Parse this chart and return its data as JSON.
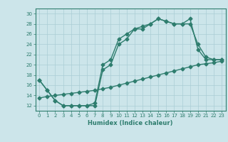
{
  "line1_x": [
    0,
    1,
    2,
    3,
    4,
    5,
    6,
    7,
    8,
    9,
    10,
    11,
    12,
    13,
    14,
    15,
    16,
    17,
    18,
    19,
    20,
    21,
    22,
    23
  ],
  "line1_y": [
    17,
    15,
    13,
    12,
    12,
    12,
    12,
    12,
    19,
    20,
    24,
    25,
    27,
    27,
    28,
    29,
    28.5,
    28,
    28,
    29,
    23,
    21,
    21,
    21
  ],
  "line2_x": [
    0,
    1,
    2,
    3,
    4,
    5,
    6,
    7,
    8,
    9,
    10,
    11,
    12,
    13,
    14,
    15,
    16,
    17,
    18,
    19,
    20,
    21,
    22,
    23
  ],
  "line2_y": [
    13.5,
    13.8,
    14.0,
    14.2,
    14.4,
    14.6,
    14.8,
    15.0,
    15.3,
    15.6,
    16.0,
    16.4,
    16.8,
    17.2,
    17.6,
    18.0,
    18.4,
    18.8,
    19.2,
    19.6,
    20.0,
    20.2,
    20.4,
    20.7
  ],
  "line3_x": [
    0,
    1,
    2,
    3,
    4,
    5,
    6,
    7,
    8,
    9,
    10,
    11,
    12,
    13,
    14,
    15,
    16,
    17,
    18,
    19,
    20,
    21,
    22,
    23
  ],
  "line3_y": [
    17,
    15,
    13,
    12,
    12,
    12,
    12,
    12.5,
    20,
    21,
    25,
    26,
    27,
    27.5,
    28,
    29,
    28.5,
    28,
    28,
    28,
    24,
    21.5,
    21,
    21
  ],
  "color": "#2e7d6e",
  "bg_color": "#cce5ea",
  "grid_color": "#aacdd5",
  "xlabel": "Humidex (Indice chaleur)",
  "xlim": [
    -0.5,
    23.5
  ],
  "ylim": [
    11,
    31
  ],
  "yticks": [
    12,
    14,
    16,
    18,
    20,
    22,
    24,
    26,
    28,
    30
  ],
  "xticks": [
    0,
    1,
    2,
    3,
    4,
    5,
    6,
    7,
    8,
    9,
    10,
    11,
    12,
    13,
    14,
    15,
    16,
    17,
    18,
    19,
    20,
    21,
    22,
    23
  ],
  "marker": "D",
  "markersize": 2.5,
  "linewidth": 1.0
}
